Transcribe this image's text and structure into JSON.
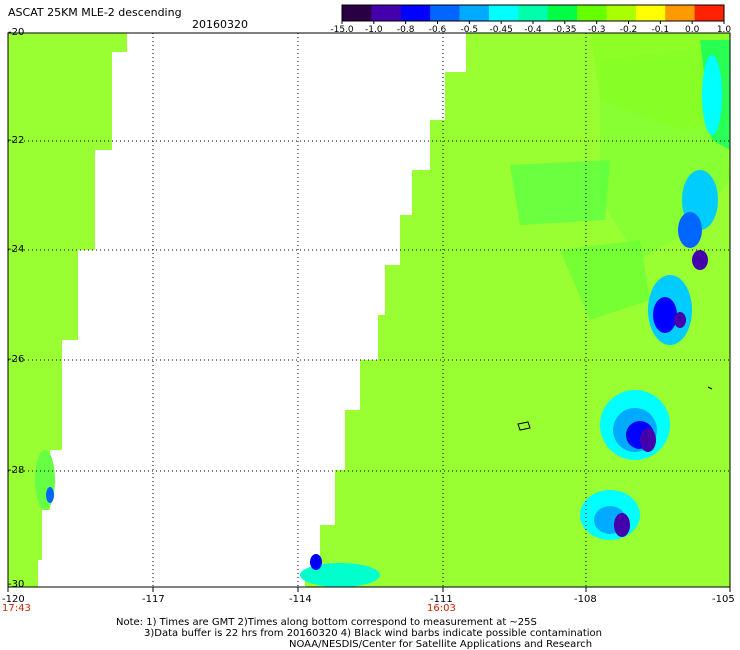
{
  "header": {
    "title": "ASCAT 25KM MLE-2 descending",
    "date": "20160320"
  },
  "colorbar": {
    "labels": [
      "-15.0",
      "-1.0",
      "-0.8",
      "-0.6",
      "-0.5",
      "-0.45",
      "-0.4",
      "-0.35",
      "-0.3",
      "-0.2",
      "-0.1",
      "0.0",
      "1.0"
    ],
    "colors": [
      "#2a0044",
      "#4400aa",
      "#0000ff",
      "#0066ff",
      "#00aaff",
      "#00ffff",
      "#00ffaa",
      "#00ff44",
      "#66ff00",
      "#aaff00",
      "#ffff00",
      "#ff9900",
      "#ff2200"
    ]
  },
  "map": {
    "lat_labels": [
      "-20",
      "-22",
      "-24",
      "-26",
      "-28",
      "-30"
    ],
    "lon_labels": [
      "-120",
      "-117",
      "-114",
      "-111",
      "-108",
      "-105"
    ],
    "time_labels": [
      "17:43",
      "16:03"
    ],
    "swath_base_color": "#99ff33",
    "missing_color": "#ffffff"
  },
  "notes": {
    "line1": "Note: 1) Times are GMT 2)Times along bottom correspond to measurement at ~25S",
    "line2": "3)Data buffer is 22 hrs from 20160320 4) Black wind barbs indicate possible contamination",
    "line3": "NOAA/NESDIS/Center for Satellite Applications and Research"
  }
}
